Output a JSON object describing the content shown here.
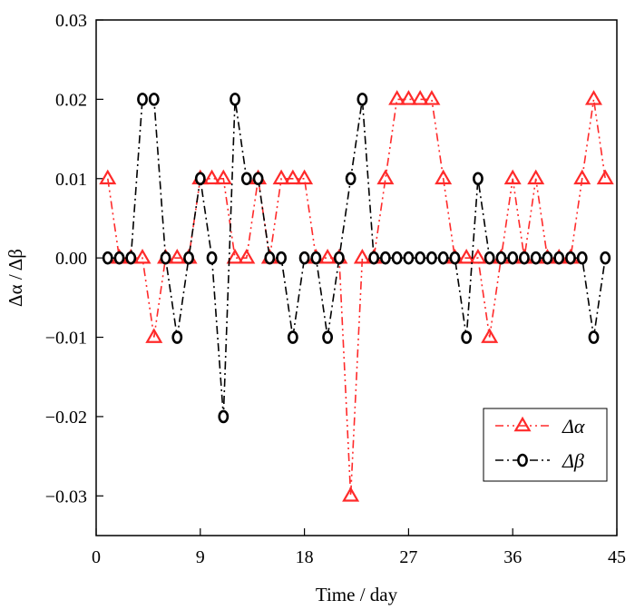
{
  "chart_data": {
    "type": "line",
    "title": "",
    "xlabel": "Time / day",
    "ylabel": "Δα / Δβ",
    "xlim": [
      0,
      45
    ],
    "ylim": [
      -0.035,
      0.03
    ],
    "x_ticks": [
      0,
      9,
      18,
      27,
      36,
      45
    ],
    "x_tick_labels": [
      "0",
      "9",
      "18",
      "27",
      "36",
      "45"
    ],
    "y_ticks": [
      0.03,
      0.02,
      0.01,
      0.0,
      -0.01,
      -0.02,
      -0.03
    ],
    "y_tick_labels": [
      "0.03",
      "0.02",
      "0.01",
      "0.00",
      "-0.01",
      "-0.02",
      "-0.03"
    ],
    "grid": false,
    "legend_position": "bottom-right",
    "series": [
      {
        "name": "Δα",
        "color": "#ff2a2a",
        "line_style": "dash-dot-dot",
        "marker": "triangle",
        "x": [
          1,
          2,
          3,
          4,
          5,
          6,
          7,
          8,
          9,
          10,
          11,
          12,
          13,
          14,
          15,
          16,
          17,
          18,
          19,
          20,
          21,
          22,
          23,
          24,
          25,
          26,
          27,
          28,
          29,
          30,
          31,
          32,
          33,
          34,
          35,
          36,
          37,
          38,
          39,
          40,
          41,
          42,
          43,
          44
        ],
        "values": [
          0.01,
          0,
          0,
          0,
          -0.01,
          0,
          0,
          0,
          0.01,
          0.01,
          0.01,
          0,
          0,
          0.01,
          0,
          0.01,
          0.01,
          0.01,
          0,
          0,
          0,
          -0.03,
          0,
          0,
          0.01,
          0.02,
          0.02,
          0.02,
          0.02,
          0.01,
          0,
          0,
          0,
          -0.01,
          0,
          0.01,
          0,
          0.01,
          0,
          0,
          0,
          0.01,
          0.02,
          0.01
        ]
      },
      {
        "name": "Δβ",
        "color": "#000000",
        "line_style": "dash-dot",
        "marker": "circle",
        "x": [
          1,
          2,
          3,
          4,
          5,
          6,
          7,
          8,
          9,
          10,
          11,
          12,
          13,
          14,
          15,
          16,
          17,
          18,
          19,
          20,
          21,
          22,
          23,
          24,
          25,
          26,
          27,
          28,
          29,
          30,
          31,
          32,
          33,
          34,
          35,
          36,
          37,
          38,
          39,
          40,
          41,
          42,
          43,
          44
        ],
        "values": [
          0,
          0,
          0,
          0.02,
          0.02,
          0,
          -0.01,
          0,
          0.01,
          0,
          -0.02,
          0.02,
          0.01,
          0.01,
          0,
          0,
          -0.01,
          0,
          0,
          -0.01,
          0,
          0.01,
          0.02,
          0,
          0,
          0,
          0,
          0,
          0,
          0,
          0,
          -0.01,
          0.01,
          0,
          0,
          0,
          0,
          0,
          0,
          0,
          0,
          0,
          -0.01,
          0
        ]
      }
    ]
  }
}
